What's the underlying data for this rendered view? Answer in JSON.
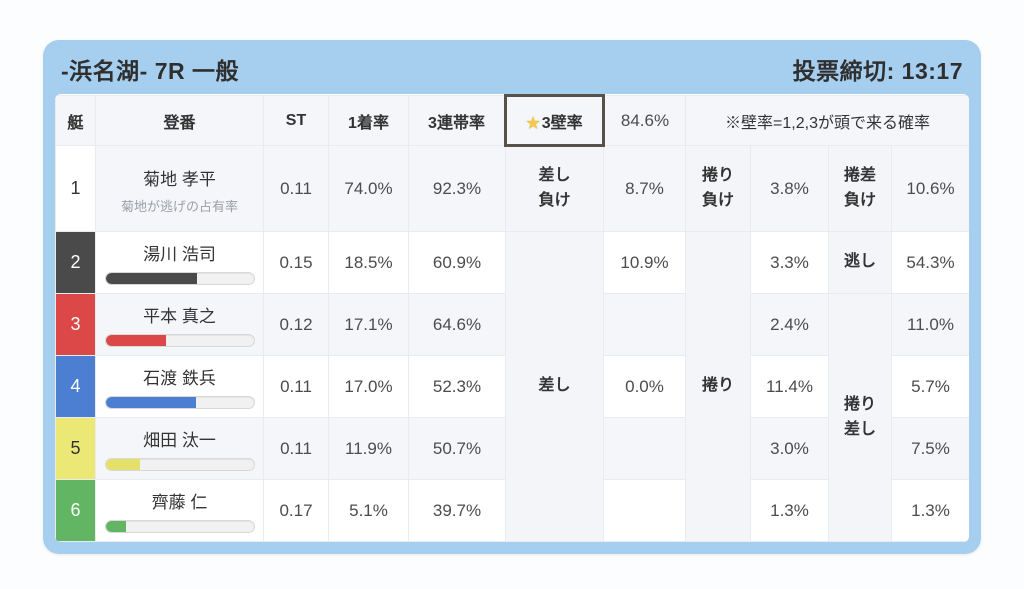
{
  "header": {
    "title": "-浜名湖- 7R 一般",
    "deadline": "投票締切: 13:17"
  },
  "colors": {
    "card_blue": "#a6ceef",
    "highlight_bg": "#e2a23b",
    "highlight_border": "#57514a",
    "star": "#f7ca43",
    "zebra_light": "#f4f6f9"
  },
  "table_header": {
    "boat": "艇",
    "racer": "登番",
    "st": "ST",
    "win_rate": "1着率",
    "top3_rate": "3連帯率",
    "wall_star": "★",
    "wall_label": "3壁率",
    "wall_value": "84.6%",
    "note": "※壁率=1,2,3が頭で来る確率"
  },
  "merged_labels": {
    "sashi": "差し",
    "makuri": "捲り",
    "makurizashi_l1": "捲り",
    "makurizashi_l2": "差し"
  },
  "rows": [
    {
      "boat": "1",
      "name": "菊地 孝平",
      "subtitle": "菊地が逃げの占有率",
      "st": "0.11",
      "win": "74.0%",
      "top3": "92.3%",
      "label1_l1": "差し",
      "label1_l2": "負け",
      "v1": "8.7%",
      "label2_l1": "捲り",
      "label2_l2": "負け",
      "v2": "3.8%",
      "label3_l1": "捲差",
      "label3_l2": "負け",
      "v3": "10.6%",
      "color": "#ffffff",
      "number_color": "#333333",
      "bar_percent": null,
      "bar_color": null
    },
    {
      "boat": "2",
      "name": "湯川 浩司",
      "st": "0.15",
      "win": "18.5%",
      "top3": "60.9%",
      "v1": "10.9%",
      "v2": "3.3%",
      "label3": "逃し",
      "v3": "54.3%",
      "color": "#4a4a4a",
      "number_color": "#ffffff",
      "bar_percent": 62,
      "bar_color": "#4a4a4a"
    },
    {
      "boat": "3",
      "name": "平本 真之",
      "st": "0.12",
      "win": "17.1%",
      "top3": "64.6%",
      "v1": "",
      "v2": "2.4%",
      "v3": "11.0%",
      "color": "#dc4848",
      "number_color": "#ffffff",
      "bar_percent": 41,
      "bar_color": "#dc4848"
    },
    {
      "boat": "4",
      "name": "石渡 鉄兵",
      "st": "0.11",
      "win": "17.0%",
      "top3": "52.3%",
      "v1": "0.0%",
      "v2": "11.4%",
      "v3": "5.7%",
      "color": "#4c7fd2",
      "number_color": "#ffffff",
      "bar_percent": 61,
      "bar_color": "#4c7fd2"
    },
    {
      "boat": "5",
      "name": "畑田 汰一",
      "st": "0.11",
      "win": "11.9%",
      "top3": "50.7%",
      "v1": "",
      "v2": "3.0%",
      "v3": "7.5%",
      "color": "#ebe876",
      "number_color": "#333333",
      "bar_percent": 23,
      "bar_color": "#e4e06a"
    },
    {
      "boat": "6",
      "name": "齊藤 仁",
      "st": "0.17",
      "win": "5.1%",
      "top3": "39.7%",
      "v1": "",
      "v2": "1.3%",
      "v3": "1.3%",
      "color": "#62b562",
      "number_color": "#ffffff",
      "bar_percent": 14,
      "bar_color": "#62b562"
    }
  ]
}
